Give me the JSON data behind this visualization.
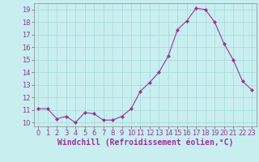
{
  "x": [
    0,
    1,
    2,
    3,
    4,
    5,
    6,
    7,
    8,
    9,
    10,
    11,
    12,
    13,
    14,
    15,
    16,
    17,
    18,
    19,
    20,
    21,
    22,
    23
  ],
  "y": [
    11.1,
    11.1,
    10.3,
    10.5,
    10.0,
    10.8,
    10.7,
    10.2,
    10.2,
    10.5,
    11.1,
    12.5,
    13.2,
    14.0,
    15.3,
    17.4,
    18.1,
    19.1,
    19.0,
    18.0,
    16.3,
    15.0,
    13.3,
    12.6
  ],
  "line_color": "#993399",
  "marker": "D",
  "marker_size": 2.0,
  "bg_color": "#c8eef0",
  "grid_color": "#aadddd",
  "xlabel": "Windchill (Refroidissement éolien,°C)",
  "xlabel_fontsize": 7.0,
  "xlabel_color": "#993399",
  "tick_color": "#993399",
  "ylim": [
    9.7,
    19.5
  ],
  "xlim": [
    -0.5,
    23.5
  ],
  "yticks": [
    10,
    11,
    12,
    13,
    14,
    15,
    16,
    17,
    18,
    19
  ],
  "xticks": [
    0,
    1,
    2,
    3,
    4,
    5,
    6,
    7,
    8,
    9,
    10,
    11,
    12,
    13,
    14,
    15,
    16,
    17,
    18,
    19,
    20,
    21,
    22,
    23
  ],
  "tick_fontsize": 6.0,
  "linewidth": 0.8
}
